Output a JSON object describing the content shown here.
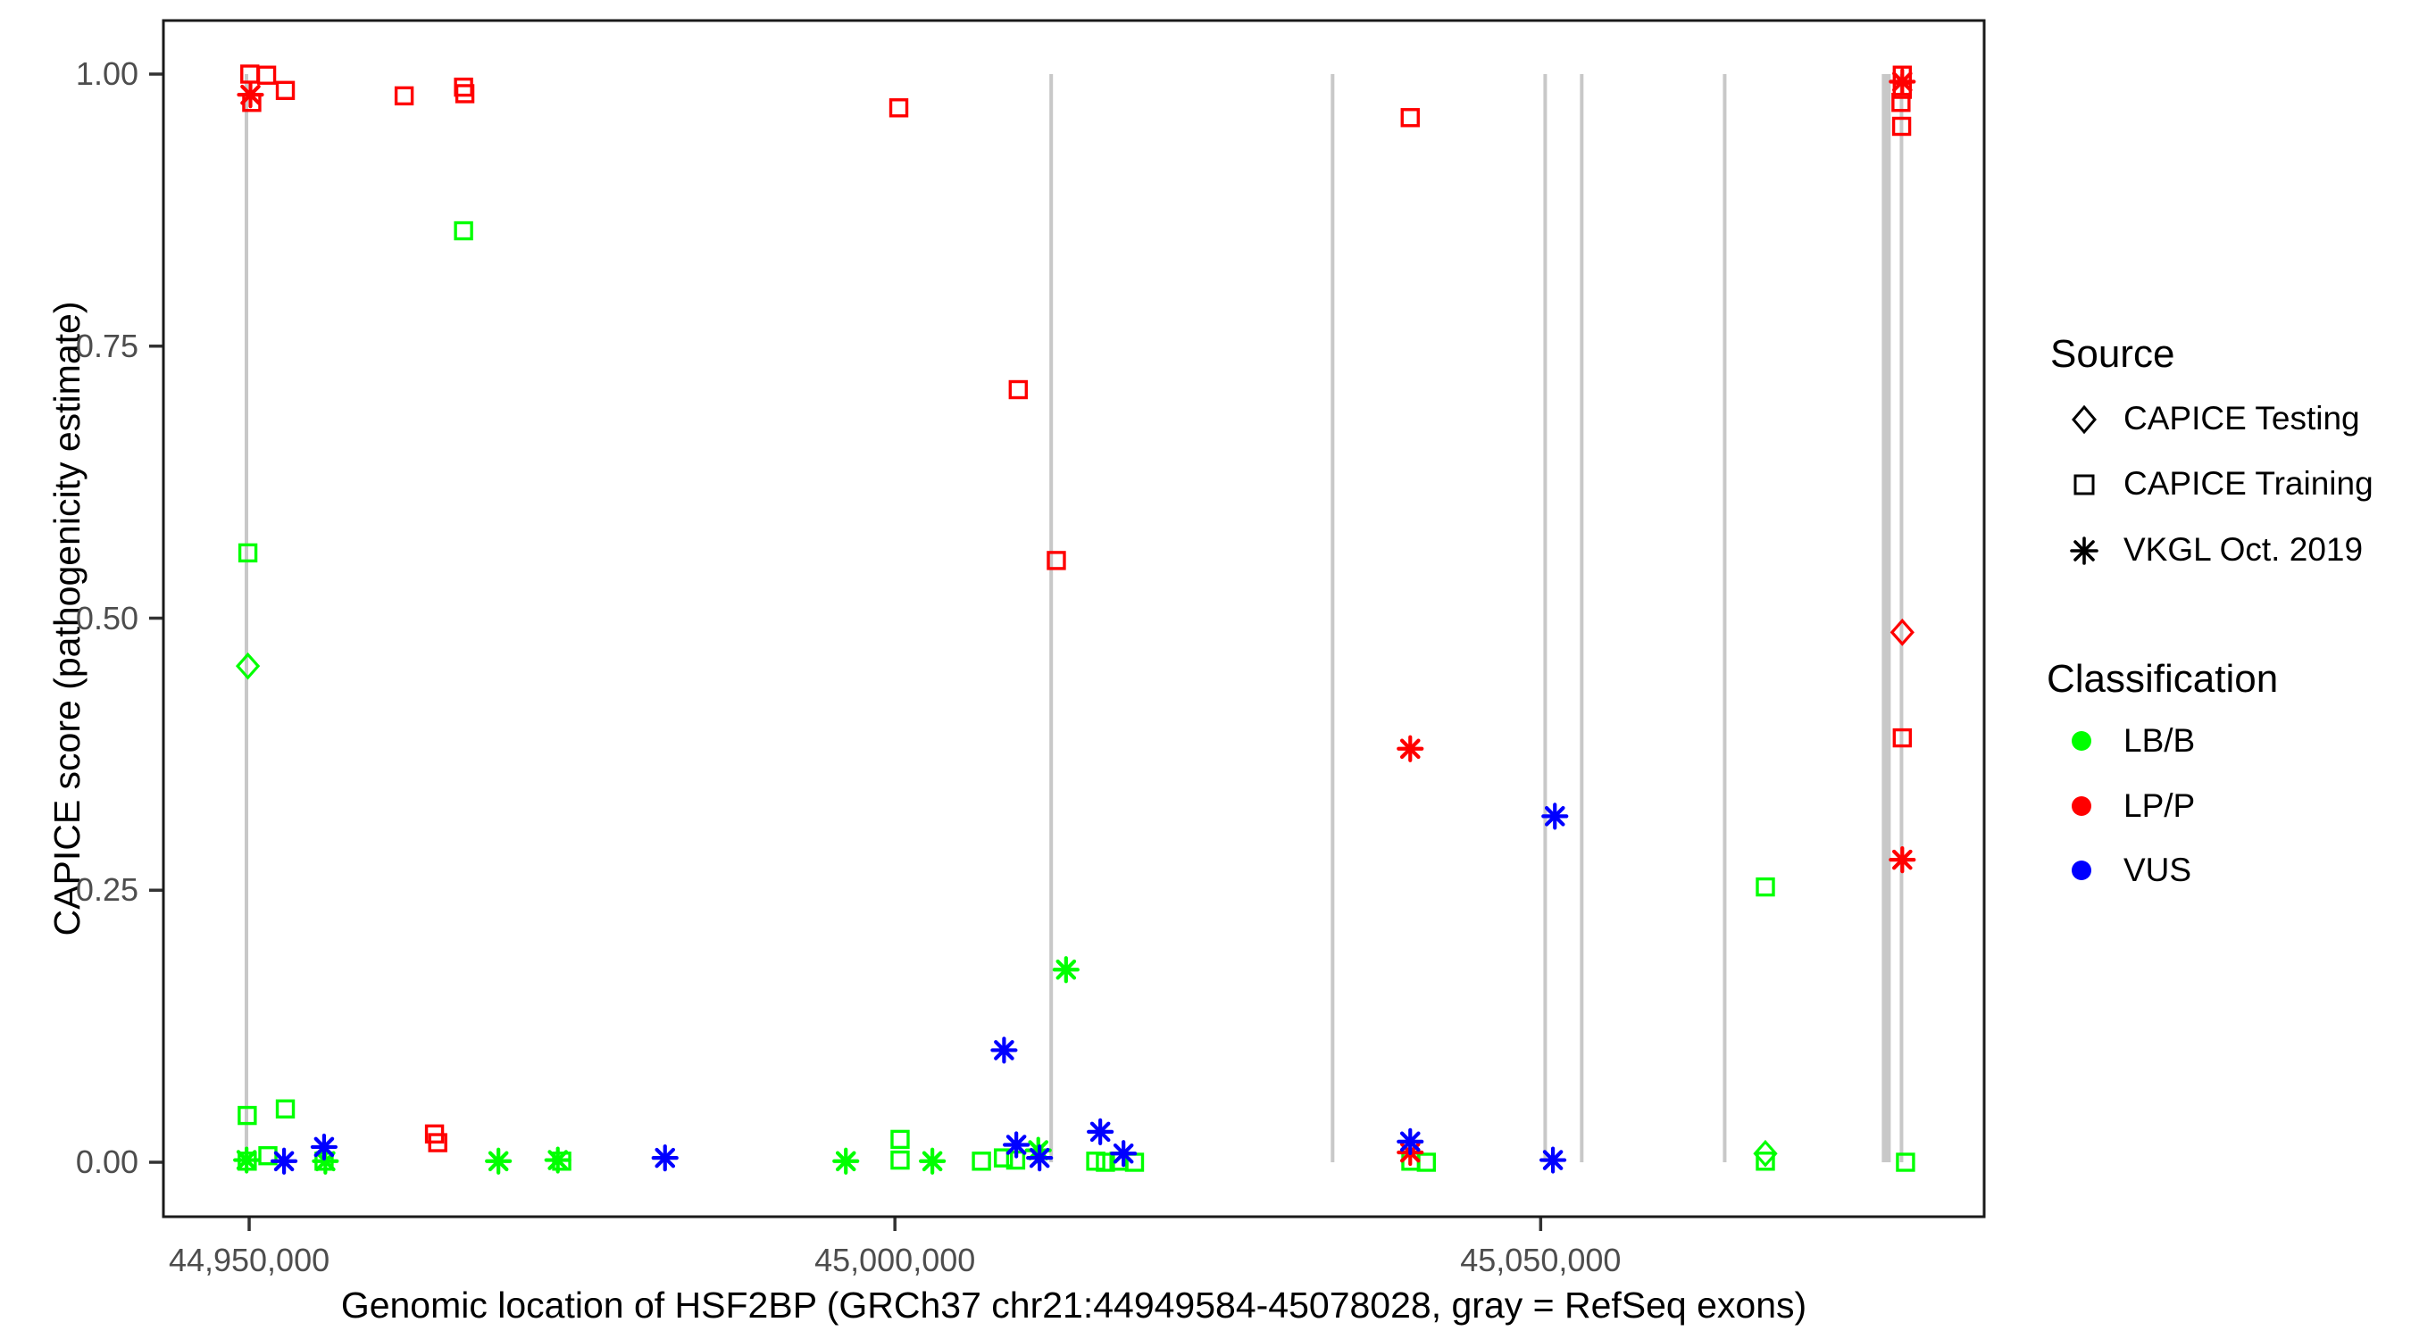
{
  "chart_data": {
    "type": "scatter",
    "title": "",
    "xlabel": "Genomic location of HSF2BP (GRCh37 chr21:44949584-45078028, gray = RefSeq exons)",
    "ylabel": "CAPICE score (pathogenicity estimate)",
    "x_range_bp": [
      44943360,
      45084340
    ],
    "y_range": [
      -0.05,
      1.05
    ],
    "grid": false,
    "legend_position": "right",
    "x_ticks": [
      {
        "value": 44950000,
        "label": "44,950,000"
      },
      {
        "value": 45000000,
        "label": "45,000,000"
      },
      {
        "value": 45050000,
        "label": "45,050,000"
      }
    ],
    "y_ticks": [
      {
        "value": 0.0,
        "label": "0.00"
      },
      {
        "value": 0.25,
        "label": "0.25"
      },
      {
        "value": 0.5,
        "label": "0.50"
      },
      {
        "value": 0.75,
        "label": "0.75"
      },
      {
        "value": 1.0,
        "label": "1.00"
      }
    ],
    "exon_lines": {
      "color": "#c8c8c8",
      "score_span": [
        0,
        1
      ],
      "lines": [
        {
          "bp": 44949790,
          "lw": 4
        },
        {
          "bp": 45012100,
          "lw": 4
        },
        {
          "bp": 45033890,
          "lw": 4
        },
        {
          "bp": 45050350,
          "lw": 4
        },
        {
          "bp": 45053180,
          "lw": 4
        },
        {
          "bp": 45064250,
          "lw": 4
        },
        {
          "bp": 45076760,
          "lw": 10
        },
        {
          "bp": 45077940,
          "lw": 4
        }
      ]
    },
    "points": [
      {
        "bp": 44950050,
        "score": 1.0,
        "cls": "LP/P",
        "src": "CAPICE Training"
      },
      {
        "bp": 44951350,
        "score": 0.999,
        "cls": "LP/P",
        "src": "CAPICE Training"
      },
      {
        "bp": 44950200,
        "score": 0.974,
        "cls": "LP/P",
        "src": "CAPICE Training"
      },
      {
        "bp": 44952800,
        "score": 0.985,
        "cls": "LP/P",
        "src": "CAPICE Training"
      },
      {
        "bp": 44962000,
        "score": 0.98,
        "cls": "LP/P",
        "src": "CAPICE Training"
      },
      {
        "bp": 44966600,
        "score": 0.988,
        "cls": "LP/P",
        "src": "CAPICE Training"
      },
      {
        "bp": 44966700,
        "score": 0.982,
        "cls": "LP/P",
        "src": "CAPICE Training"
      },
      {
        "bp": 44964350,
        "score": 0.026,
        "cls": "LP/P",
        "src": "CAPICE Training"
      },
      {
        "bp": 44964600,
        "score": 0.018,
        "cls": "LP/P",
        "src": "CAPICE Training"
      },
      {
        "bp": 45000300,
        "score": 0.969,
        "cls": "LP/P",
        "src": "CAPICE Training"
      },
      {
        "bp": 45009550,
        "score": 0.71,
        "cls": "LP/P",
        "src": "CAPICE Training"
      },
      {
        "bp": 45012500,
        "score": 0.553,
        "cls": "LP/P",
        "src": "CAPICE Training"
      },
      {
        "bp": 45039900,
        "score": 0.96,
        "cls": "LP/P",
        "src": "CAPICE Training"
      },
      {
        "bp": 45078000,
        "score": 0.999,
        "cls": "LP/P",
        "src": "CAPICE Training"
      },
      {
        "bp": 45078000,
        "score": 0.986,
        "cls": "LP/P",
        "src": "CAPICE Training"
      },
      {
        "bp": 45077900,
        "score": 0.974,
        "cls": "LP/P",
        "src": "CAPICE Training"
      },
      {
        "bp": 45077950,
        "score": 0.952,
        "cls": "LP/P",
        "src": "CAPICE Training"
      },
      {
        "bp": 45078000,
        "score": 0.39,
        "cls": "LP/P",
        "src": "CAPICE Training"
      },
      {
        "bp": 44966600,
        "score": 0.856,
        "cls": "LB/B",
        "src": "CAPICE Training"
      },
      {
        "bp": 44949900,
        "score": 0.56,
        "cls": "LB/B",
        "src": "CAPICE Training"
      },
      {
        "bp": 44949850,
        "score": 0.043,
        "cls": "LB/B",
        "src": "CAPICE Training"
      },
      {
        "bp": 44952800,
        "score": 0.049,
        "cls": "LB/B",
        "src": "CAPICE Training"
      },
      {
        "bp": 44949850,
        "score": 0.001,
        "cls": "LB/B",
        "src": "CAPICE Training"
      },
      {
        "bp": 44951450,
        "score": 0.006,
        "cls": "LB/B",
        "src": "CAPICE Training"
      },
      {
        "bp": 44955800,
        "score": 0.001,
        "cls": "LB/B",
        "src": "CAPICE Training"
      },
      {
        "bp": 44974200,
        "score": 0.001,
        "cls": "LB/B",
        "src": "CAPICE Training"
      },
      {
        "bp": 45000400,
        "score": 0.021,
        "cls": "LB/B",
        "src": "CAPICE Training"
      },
      {
        "bp": 45000400,
        "score": 0.002,
        "cls": "LB/B",
        "src": "CAPICE Training"
      },
      {
        "bp": 45006700,
        "score": 0.001,
        "cls": "LB/B",
        "src": "CAPICE Training"
      },
      {
        "bp": 45008400,
        "score": 0.004,
        "cls": "LB/B",
        "src": "CAPICE Training"
      },
      {
        "bp": 45009350,
        "score": 0.002,
        "cls": "LB/B",
        "src": "CAPICE Training"
      },
      {
        "bp": 45015550,
        "score": 0.001,
        "cls": "LB/B",
        "src": "CAPICE Training"
      },
      {
        "bp": 45016300,
        "score": 0.0,
        "cls": "LB/B",
        "src": "CAPICE Training"
      },
      {
        "bp": 45017350,
        "score": 0.001,
        "cls": "LB/B",
        "src": "CAPICE Training"
      },
      {
        "bp": 45018550,
        "score": 0.0,
        "cls": "LB/B",
        "src": "CAPICE Training"
      },
      {
        "bp": 45039950,
        "score": 0.001,
        "cls": "LB/B",
        "src": "CAPICE Training"
      },
      {
        "bp": 45041150,
        "score": 0.0,
        "cls": "LB/B",
        "src": "CAPICE Training"
      },
      {
        "bp": 45067400,
        "score": 0.253,
        "cls": "LB/B",
        "src": "CAPICE Training"
      },
      {
        "bp": 45067400,
        "score": 0.001,
        "cls": "LB/B",
        "src": "CAPICE Training"
      },
      {
        "bp": 45078250,
        "score": 0.0,
        "cls": "LB/B",
        "src": "CAPICE Training"
      },
      {
        "bp": 44949900,
        "score": 0.456,
        "cls": "LB/B",
        "src": "CAPICE Testing"
      },
      {
        "bp": 45067400,
        "score": 0.008,
        "cls": "LB/B",
        "src": "CAPICE Testing"
      },
      {
        "bp": 45078000,
        "score": 0.487,
        "cls": "LP/P",
        "src": "CAPICE Testing"
      },
      {
        "bp": 44949800,
        "score": 0.002,
        "cls": "LB/B",
        "src": "VKGL Oct. 2019"
      },
      {
        "bp": 44955900,
        "score": 0.001,
        "cls": "LB/B",
        "src": "VKGL Oct. 2019"
      },
      {
        "bp": 44969300,
        "score": 0.001,
        "cls": "LB/B",
        "src": "VKGL Oct. 2019"
      },
      {
        "bp": 44973900,
        "score": 0.002,
        "cls": "LB/B",
        "src": "VKGL Oct. 2019"
      },
      {
        "bp": 44996200,
        "score": 0.001,
        "cls": "LB/B",
        "src": "VKGL Oct. 2019"
      },
      {
        "bp": 45002900,
        "score": 0.001,
        "cls": "LB/B",
        "src": "VKGL Oct. 2019"
      },
      {
        "bp": 45011100,
        "score": 0.011,
        "cls": "LB/B",
        "src": "VKGL Oct. 2019"
      },
      {
        "bp": 45013250,
        "score": 0.177,
        "cls": "LB/B",
        "src": "VKGL Oct. 2019"
      },
      {
        "bp": 44950100,
        "score": 0.981,
        "cls": "LP/P",
        "src": "VKGL Oct. 2019"
      },
      {
        "bp": 45039900,
        "score": 0.38,
        "cls": "LP/P",
        "src": "VKGL Oct. 2019"
      },
      {
        "bp": 45039900,
        "score": 0.009,
        "cls": "LP/P",
        "src": "VKGL Oct. 2019"
      },
      {
        "bp": 45078000,
        "score": 0.993,
        "cls": "LP/P",
        "src": "VKGL Oct. 2019"
      },
      {
        "bp": 45078000,
        "score": 0.278,
        "cls": "LP/P",
        "src": "VKGL Oct. 2019"
      },
      {
        "bp": 44952700,
        "score": 0.001,
        "cls": "VUS",
        "src": "VKGL Oct. 2019"
      },
      {
        "bp": 44955800,
        "score": 0.014,
        "cls": "VUS",
        "src": "VKGL Oct. 2019"
      },
      {
        "bp": 44982200,
        "score": 0.004,
        "cls": "VUS",
        "src": "VKGL Oct. 2019"
      },
      {
        "bp": 45008450,
        "score": 0.103,
        "cls": "VUS",
        "src": "VKGL Oct. 2019"
      },
      {
        "bp": 45009400,
        "score": 0.016,
        "cls": "VUS",
        "src": "VKGL Oct. 2019"
      },
      {
        "bp": 45011200,
        "score": 0.004,
        "cls": "VUS",
        "src": "VKGL Oct. 2019"
      },
      {
        "bp": 45015900,
        "score": 0.028,
        "cls": "VUS",
        "src": "VKGL Oct. 2019"
      },
      {
        "bp": 45017700,
        "score": 0.008,
        "cls": "VUS",
        "src": "VKGL Oct. 2019"
      },
      {
        "bp": 45039900,
        "score": 0.019,
        "cls": "VUS",
        "src": "VKGL Oct. 2019"
      },
      {
        "bp": 45051100,
        "score": 0.318,
        "cls": "VUS",
        "src": "VKGL Oct. 2019"
      },
      {
        "bp": 45050950,
        "score": 0.002,
        "cls": "VUS",
        "src": "VKGL Oct. 2019"
      }
    ]
  },
  "legend": {
    "source": {
      "title": "Source",
      "items": [
        {
          "marker": "diamond",
          "label": "CAPICE Testing"
        },
        {
          "marker": "square",
          "label": "CAPICE Training"
        },
        {
          "marker": "asterisk",
          "label": "VKGL Oct. 2019"
        }
      ]
    },
    "classification": {
      "title": "Classification",
      "items": [
        {
          "label": "LB/B",
          "color": "#00ff00"
        },
        {
          "label": "LP/P",
          "color": "#ff0000"
        },
        {
          "label": "VUS",
          "color": "#0000ff"
        }
      ]
    }
  },
  "colors": {
    "lbb": "#00ff00",
    "lpp": "#ff0000",
    "vus": "#0000ff",
    "exon_gray": "#c8c8c8",
    "axis_text": "#4d4d4d",
    "axis_title": "#000000",
    "panel_border": "#1a1a1a"
  }
}
